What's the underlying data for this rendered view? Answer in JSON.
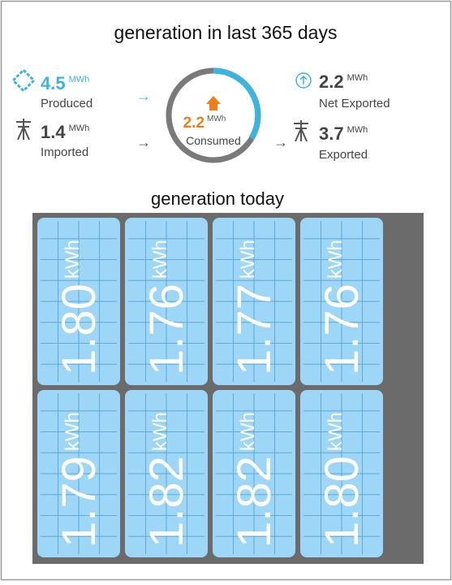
{
  "title": "generation in last 365 days",
  "produced": {
    "value": "4.5",
    "unit": "MWh",
    "label": "Produced"
  },
  "imported": {
    "value": "1.4",
    "unit": "MWh",
    "label": "Imported"
  },
  "consumed": {
    "value": "2.2",
    "unit": "MWh",
    "label": "Consumed"
  },
  "net_exported": {
    "value": "2.2",
    "unit": "MWh",
    "label": "Net Exported"
  },
  "exported": {
    "value": "3.7",
    "unit": "MWh",
    "label": "Exported"
  },
  "subtitle": "generation today",
  "panels": [
    {
      "value": "1.80",
      "unit": "kWh"
    },
    {
      "value": "1.76",
      "unit": "kWh"
    },
    {
      "value": "1.77",
      "unit": "kWh"
    },
    {
      "value": "1.76",
      "unit": "kWh"
    },
    {
      "value": "1.79",
      "unit": "kWh"
    },
    {
      "value": "1.82",
      "unit": "kWh"
    },
    {
      "value": "1.82",
      "unit": "kWh"
    },
    {
      "value": "1.80",
      "unit": "kWh"
    }
  ]
}
